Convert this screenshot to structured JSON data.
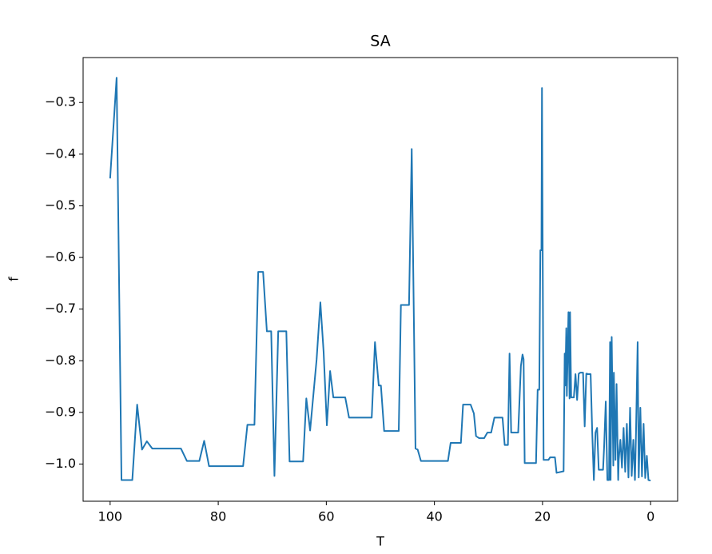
{
  "chart_data": {
    "type": "line",
    "title": "SA",
    "xlabel": "T",
    "ylabel": "f",
    "xlim": [
      105,
      -5
    ],
    "ylim": [
      -1.072,
      -0.213
    ],
    "xticks": [
      100,
      80,
      60,
      40,
      20,
      0
    ],
    "yticks": [
      {
        "value": -0.3,
        "label": "−0.3"
      },
      {
        "value": -0.4,
        "label": "−0.4"
      },
      {
        "value": -0.5,
        "label": "−0.5"
      },
      {
        "value": -0.6,
        "label": "−0.6"
      },
      {
        "value": -0.7,
        "label": "−0.7"
      },
      {
        "value": -0.8,
        "label": "−0.8"
      },
      {
        "value": -0.9,
        "label": "−0.9"
      },
      {
        "value": -1.0,
        "label": "−1.0"
      }
    ],
    "x": [
      100,
      98.8,
      97.9,
      95.9,
      95,
      94.1,
      93.2,
      92.2,
      86.9,
      85.8,
      83.5,
      82.6,
      81.7,
      75.4,
      74.6,
      73.3,
      72.6,
      71.7,
      71,
      70.2,
      69.6,
      68.9,
      67.4,
      66.8,
      64.3,
      63.7,
      63,
      61.8,
      61.1,
      60.5,
      59.9,
      59.3,
      58.7,
      56.5,
      55.8,
      51.6,
      51,
      50.3,
      49.9,
      49.3,
      46.6,
      46.2,
      44.7,
      44.2,
      43.5,
      43.1,
      42.5,
      37.5,
      37,
      35.1,
      34.7,
      33.3,
      32.7,
      32.3,
      31.7,
      30.8,
      30.2,
      29.5,
      28.9,
      27.4,
      27,
      26.4,
      26.1,
      25.8,
      24.5,
      24,
      23.7,
      23.5,
      23.3,
      21.2,
      20.9,
      20.6,
      20.4,
      20.2,
      20.1,
      19.8,
      18.9,
      18.6,
      17.7,
      17.4,
      16.1,
      15.9,
      15.8,
      15.6,
      15.5,
      15.2,
      15,
      14.9,
      14.7,
      14.2,
      13.9,
      13.6,
      13.3,
      13,
      12.5,
      12.2,
      11.9,
      11.4,
      11.1,
      10.8,
      10.5,
      10.2,
      9.9,
      9.6,
      8.8,
      8.6,
      8.3,
      8,
      7.7,
      7.5,
      7.4,
      7.2,
      6.9,
      6.8,
      6.5,
      6.3,
      6,
      5.9,
      5.6,
      5.3,
      5,
      4.7,
      4.4,
      4.1,
      3.8,
      3.5,
      3.2,
      2.9,
      2.7,
      2.4,
      2.2,
      1.9,
      1.6,
      1.3,
      1,
      0.7,
      0.4,
      0
    ],
    "series": [
      {
        "color": "#1f77b4",
        "values": [
          -0.447,
          -0.252,
          -1.031,
          -1.031,
          -0.885,
          -0.972,
          -0.956,
          -0.97,
          -0.97,
          -0.994,
          -0.994,
          -0.955,
          -1.004,
          -1.004,
          -0.924,
          -0.924,
          -0.628,
          -0.628,
          -0.743,
          -0.743,
          -1.023,
          -0.743,
          -0.743,
          -0.995,
          -0.995,
          -0.873,
          -0.935,
          -0.798,
          -0.687,
          -0.783,
          -0.925,
          -0.82,
          -0.871,
          -0.871,
          -0.91,
          -0.91,
          -0.764,
          -0.848,
          -0.848,
          -0.936,
          -0.936,
          -0.692,
          -0.692,
          -0.39,
          -0.97,
          -0.972,
          -0.994,
          -0.994,
          -0.959,
          -0.959,
          -0.885,
          -0.885,
          -0.902,
          -0.946,
          -0.95,
          -0.95,
          -0.939,
          -0.939,
          -0.91,
          -0.91,
          -0.963,
          -0.963,
          -0.786,
          -0.939,
          -0.939,
          -0.81,
          -0.788,
          -0.797,
          -0.998,
          -0.998,
          -0.856,
          -0.856,
          -0.586,
          -0.586,
          -0.272,
          -0.992,
          -0.992,
          -0.987,
          -0.987,
          -1.017,
          -1.014,
          -0.786,
          -0.848,
          -0.737,
          -0.868,
          -0.706,
          -0.873,
          -0.706,
          -0.871,
          -0.871,
          -0.826,
          -0.876,
          -0.825,
          -0.823,
          -0.823,
          -0.927,
          -0.825,
          -0.826,
          -0.826,
          -0.939,
          -1.031,
          -0.939,
          -0.93,
          -1.011,
          -1.011,
          -0.966,
          -0.879,
          -1.031,
          -1.031,
          -0.764,
          -1.031,
          -0.754,
          -1.003,
          -0.823,
          -0.992,
          -0.845,
          -1.031,
          -0.992,
          -0.953,
          -1.007,
          -0.93,
          -1.015,
          -0.922,
          -1.026,
          -0.891,
          -1.023,
          -0.953,
          -1.031,
          -0.938,
          -0.764,
          -1.026,
          -0.891,
          -1.024,
          -0.922,
          -1.027,
          -0.984,
          -1.031,
          -1.032
        ]
      }
    ]
  }
}
